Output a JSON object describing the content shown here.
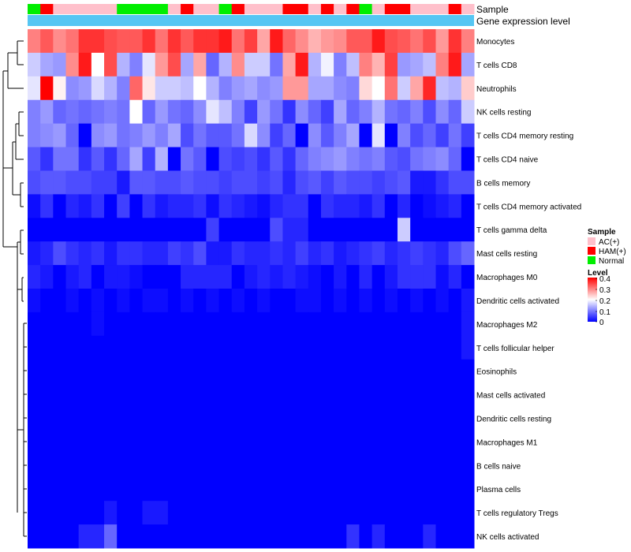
{
  "chart_data": {
    "type": "heatmap",
    "title": "",
    "annotations": {
      "sample_label": "Sample",
      "expression_label": "Gene expression level",
      "sample_groups": [
        "Normal",
        "HAM(+)",
        "AC(+)",
        "AC(+)",
        "AC(+)",
        "AC(+)",
        "AC(+)",
        "Normal",
        "Normal",
        "Normal",
        "Normal",
        "AC(+)",
        "HAM(+)",
        "AC(+)",
        "AC(+)",
        "Normal",
        "HAM(+)",
        "AC(+)",
        "AC(+)",
        "AC(+)",
        "HAM(+)",
        "HAM(+)",
        "AC(+)",
        "HAM(+)",
        "AC(+)",
        "HAM(+)",
        "Normal",
        "AC(+)",
        "HAM(+)",
        "HAM(+)",
        "AC(+)",
        "AC(+)",
        "AC(+)",
        "HAM(+)",
        "AC(+)"
      ]
    },
    "rows": [
      "Monocytes",
      "T cells CD8",
      "Neutrophils",
      "NK cells resting",
      "T cells CD4 memory resting",
      "T cells CD4 naive",
      "B cells memory",
      "T cells CD4 memory activated",
      "T cells gamma delta",
      "Mast cells resting",
      "Macrophages M0",
      "Dendritic cells activated",
      "Macrophages M2",
      "T cells follicular helper",
      "Eosinophils",
      "Mast cells activated",
      "Dendritic cells resting",
      "Macrophages M1",
      "B cells naive",
      "Plasma cells",
      "T cells regulatory  Tregs",
      "NK cells activated"
    ],
    "values": [
      [
        0.3,
        0.33,
        0.29,
        0.31,
        0.36,
        0.36,
        0.34,
        0.33,
        0.33,
        0.36,
        0.31,
        0.36,
        0.33,
        0.36,
        0.36,
        0.38,
        0.31,
        0.35,
        0.27,
        0.38,
        0.32,
        0.29,
        0.26,
        0.28,
        0.29,
        0.33,
        0.33,
        0.38,
        0.34,
        0.33,
        0.31,
        0.34,
        0.28,
        0.36,
        0.3
      ],
      [
        0.16,
        0.13,
        0.12,
        0.29,
        0.38,
        0.2,
        0.34,
        0.14,
        0.1,
        0.18,
        0.28,
        0.34,
        0.13,
        0.27,
        0.08,
        0.14,
        0.29,
        0.16,
        0.16,
        0.09,
        0.27,
        0.38,
        0.14,
        0.19,
        0.1,
        0.15,
        0.3,
        0.26,
        0.35,
        0.12,
        0.13,
        0.15,
        0.3,
        0.38,
        0.13
      ],
      [
        0.18,
        0.4,
        0.21,
        0.11,
        0.12,
        0.17,
        0.14,
        0.1,
        0.32,
        0.22,
        0.16,
        0.16,
        0.15,
        0.2,
        0.14,
        0.1,
        0.12,
        0.13,
        0.11,
        0.12,
        0.28,
        0.28,
        0.13,
        0.13,
        0.11,
        0.1,
        0.23,
        0.2,
        0.31,
        0.16,
        0.27,
        0.37,
        0.15,
        0.14,
        0.24
      ],
      [
        0.1,
        0.12,
        0.08,
        0.09,
        0.08,
        0.09,
        0.1,
        0.09,
        0.2,
        0.08,
        0.12,
        0.09,
        0.08,
        0.11,
        0.18,
        0.15,
        0.1,
        0.05,
        0.12,
        0.09,
        0.04,
        0.11,
        0.08,
        0.05,
        0.13,
        0.08,
        0.1,
        0.14,
        0.09,
        0.08,
        0.1,
        0.06,
        0.11,
        0.08,
        0.16
      ],
      [
        0.1,
        0.11,
        0.12,
        0.08,
        0.0,
        0.11,
        0.12,
        0.09,
        0.1,
        0.12,
        0.1,
        0.13,
        0.06,
        0.09,
        0.07,
        0.07,
        0.09,
        0.17,
        0.11,
        0.05,
        0.08,
        0.0,
        0.11,
        0.07,
        0.1,
        0.13,
        0.0,
        0.18,
        0.0,
        0.1,
        0.06,
        0.08,
        0.05,
        0.09,
        0.05
      ],
      [
        0.07,
        0.04,
        0.09,
        0.09,
        0.04,
        0.07,
        0.04,
        0.08,
        0.13,
        0.05,
        0.14,
        0.0,
        0.09,
        0.07,
        0.0,
        0.06,
        0.05,
        0.06,
        0.04,
        0.07,
        0.04,
        0.08,
        0.1,
        0.11,
        0.12,
        0.1,
        0.09,
        0.1,
        0.07,
        0.06,
        0.09,
        0.1,
        0.11,
        0.08,
        0.0
      ],
      [
        0.06,
        0.07,
        0.07,
        0.06,
        0.06,
        0.05,
        0.05,
        0.02,
        0.07,
        0.07,
        0.06,
        0.06,
        0.07,
        0.06,
        0.06,
        0.05,
        0.06,
        0.06,
        0.05,
        0.06,
        0.03,
        0.06,
        0.07,
        0.05,
        0.07,
        0.06,
        0.06,
        0.05,
        0.06,
        0.07,
        0.02,
        0.02,
        0.04,
        0.06,
        0.06
      ],
      [
        0.01,
        0.04,
        0.0,
        0.03,
        0.02,
        0.04,
        0.0,
        0.05,
        0.0,
        0.04,
        0.02,
        0.03,
        0.03,
        0.04,
        0.01,
        0.04,
        0.03,
        0.02,
        0.01,
        0.03,
        0.04,
        0.04,
        0.0,
        0.04,
        0.03,
        0.03,
        0.02,
        0.04,
        0.0,
        0.03,
        0.0,
        0.01,
        0.02,
        0.03,
        0.0
      ],
      [
        0.0,
        0.0,
        0.0,
        0.0,
        0.0,
        0.0,
        0.0,
        0.0,
        0.0,
        0.0,
        0.0,
        0.0,
        0.0,
        0.0,
        0.05,
        0.0,
        0.0,
        0.0,
        0.0,
        0.06,
        0.03,
        0.03,
        0.0,
        0.0,
        0.0,
        0.0,
        0.0,
        0.0,
        0.0,
        0.16,
        0.0,
        0.0,
        0.0,
        0.0,
        0.0
      ],
      [
        0.02,
        0.03,
        0.06,
        0.04,
        0.03,
        0.04,
        0.02,
        0.04,
        0.04,
        0.03,
        0.03,
        0.05,
        0.04,
        0.06,
        0.02,
        0.02,
        0.04,
        0.03,
        0.03,
        0.04,
        0.03,
        0.05,
        0.03,
        0.04,
        0.02,
        0.03,
        0.04,
        0.05,
        0.03,
        0.04,
        0.05,
        0.04,
        0.03,
        0.06,
        0.08
      ],
      [
        0.03,
        0.02,
        0.0,
        0.02,
        0.03,
        0.0,
        0.02,
        0.02,
        0.01,
        0.0,
        0.0,
        0.0,
        0.03,
        0.03,
        0.03,
        0.03,
        0.0,
        0.02,
        0.03,
        0.02,
        0.03,
        0.02,
        0.01,
        0.0,
        0.02,
        0.0,
        0.03,
        0.0,
        0.02,
        0.04,
        0.04,
        0.04,
        0.01,
        0.03,
        0.0
      ],
      [
        0.01,
        0.0,
        0.0,
        0.01,
        0.0,
        0.01,
        0.0,
        0.01,
        0.0,
        0.01,
        0.01,
        0.0,
        0.01,
        0.0,
        0.01,
        0.0,
        0.01,
        0.0,
        0.01,
        0.0,
        0.0,
        0.01,
        0.01,
        0.0,
        0.01,
        0.0,
        0.01,
        0.0,
        0.01,
        0.0,
        0.01,
        0.0,
        0.01,
        0.0,
        0.02
      ],
      [
        0.0,
        0.0,
        0.0,
        0.0,
        0.0,
        0.01,
        0.0,
        0.0,
        0.0,
        0.0,
        0.0,
        0.0,
        0.0,
        0.0,
        0.0,
        0.0,
        0.0,
        0.0,
        0.0,
        0.0,
        0.0,
        0.0,
        0.0,
        0.0,
        0.0,
        0.0,
        0.0,
        0.0,
        0.0,
        0.0,
        0.0,
        0.0,
        0.0,
        0.0,
        0.02
      ],
      [
        0.0,
        0.0,
        0.0,
        0.0,
        0.0,
        0.0,
        0.0,
        0.0,
        0.0,
        0.0,
        0.0,
        0.0,
        0.0,
        0.0,
        0.0,
        0.0,
        0.0,
        0.0,
        0.0,
        0.0,
        0.0,
        0.0,
        0.0,
        0.0,
        0.0,
        0.0,
        0.0,
        0.0,
        0.0,
        0.0,
        0.0,
        0.0,
        0.0,
        0.0,
        0.02
      ],
      [
        0.0,
        0.0,
        0.0,
        0.0,
        0.0,
        0.0,
        0.0,
        0.0,
        0.0,
        0.0,
        0.0,
        0.0,
        0.0,
        0.0,
        0.0,
        0.0,
        0.0,
        0.0,
        0.0,
        0.0,
        0.0,
        0.0,
        0.0,
        0.0,
        0.0,
        0.0,
        0.0,
        0.0,
        0.0,
        0.0,
        0.0,
        0.0,
        0.0,
        0.0,
        0.0
      ],
      [
        0.0,
        0.0,
        0.0,
        0.0,
        0.0,
        0.0,
        0.0,
        0.0,
        0.0,
        0.0,
        0.0,
        0.0,
        0.0,
        0.0,
        0.0,
        0.0,
        0.0,
        0.0,
        0.0,
        0.0,
        0.0,
        0.0,
        0.0,
        0.0,
        0.0,
        0.0,
        0.0,
        0.0,
        0.0,
        0.0,
        0.0,
        0.0,
        0.0,
        0.0,
        0.0
      ],
      [
        0.0,
        0.0,
        0.0,
        0.0,
        0.0,
        0.0,
        0.0,
        0.0,
        0.0,
        0.0,
        0.0,
        0.0,
        0.0,
        0.0,
        0.0,
        0.0,
        0.0,
        0.0,
        0.0,
        0.0,
        0.0,
        0.0,
        0.0,
        0.0,
        0.0,
        0.0,
        0.0,
        0.0,
        0.0,
        0.0,
        0.0,
        0.0,
        0.0,
        0.0,
        0.0
      ],
      [
        0.0,
        0.0,
        0.0,
        0.0,
        0.0,
        0.0,
        0.0,
        0.0,
        0.0,
        0.0,
        0.0,
        0.0,
        0.0,
        0.0,
        0.0,
        0.0,
        0.0,
        0.0,
        0.0,
        0.0,
        0.0,
        0.0,
        0.0,
        0.0,
        0.0,
        0.0,
        0.0,
        0.0,
        0.0,
        0.0,
        0.0,
        0.0,
        0.0,
        0.0,
        0.0
      ],
      [
        0.0,
        0.0,
        0.0,
        0.0,
        0.0,
        0.0,
        0.0,
        0.0,
        0.0,
        0.0,
        0.0,
        0.0,
        0.0,
        0.0,
        0.0,
        0.0,
        0.0,
        0.0,
        0.0,
        0.0,
        0.0,
        0.0,
        0.0,
        0.0,
        0.0,
        0.0,
        0.0,
        0.0,
        0.0,
        0.0,
        0.0,
        0.0,
        0.0,
        0.0,
        0.0
      ],
      [
        0.0,
        0.0,
        0.0,
        0.0,
        0.0,
        0.0,
        0.0,
        0.0,
        0.0,
        0.0,
        0.0,
        0.0,
        0.0,
        0.0,
        0.0,
        0.0,
        0.0,
        0.0,
        0.0,
        0.0,
        0.0,
        0.0,
        0.0,
        0.0,
        0.0,
        0.0,
        0.0,
        0.0,
        0.0,
        0.0,
        0.0,
        0.0,
        0.0,
        0.0,
        0.0
      ],
      [
        0.0,
        0.0,
        0.0,
        0.0,
        0.0,
        0.0,
        0.02,
        0.0,
        0.0,
        0.02,
        0.02,
        0.0,
        0.0,
        0.0,
        0.0,
        0.0,
        0.0,
        0.0,
        0.0,
        0.0,
        0.0,
        0.0,
        0.0,
        0.0,
        0.0,
        0.0,
        0.0,
        0.0,
        0.0,
        0.0,
        0.0,
        0.0,
        0.0,
        0.0,
        0.0
      ],
      [
        0.0,
        0.0,
        0.0,
        0.0,
        0.03,
        0.03,
        0.08,
        0.0,
        0.0,
        0.0,
        0.0,
        0.0,
        0.0,
        0.0,
        0.0,
        0.0,
        0.0,
        0.0,
        0.0,
        0.0,
        0.0,
        0.0,
        0.0,
        0.0,
        0.0,
        0.04,
        0.0,
        0.03,
        0.0,
        0.0,
        0.0,
        0.03,
        0.0,
        0.0,
        0.0
      ]
    ],
    "color_scale": {
      "title": "Level",
      "min": 0,
      "max": 0.4,
      "mid": 0.2,
      "low_color": "#0000ff",
      "mid_color": "#ffffff",
      "high_color": "#ff0000",
      "ticks": [
        "0.4",
        "0.3",
        "0.2",
        "0.1",
        "0"
      ]
    },
    "legends": {
      "sample_title": "Sample",
      "sample_items": [
        {
          "label": "AC(+)",
          "color": "#ffc0cb"
        },
        {
          "label": "HAM(+)",
          "color": "#ff0000"
        },
        {
          "label": "Normal",
          "color": "#00ee00"
        }
      ]
    },
    "expression_bar_color": "#56c6f3"
  }
}
